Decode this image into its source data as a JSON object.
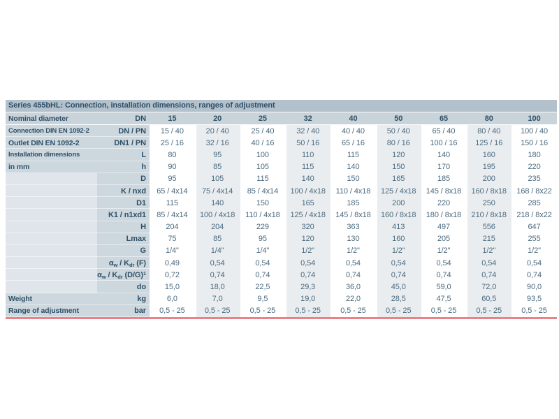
{
  "table": {
    "title": "Series 455bHL: Connection, installation dimensions, ranges of adjustment",
    "header": {
      "name": "Nominal diameter",
      "symbol": "DN",
      "columns": [
        "15",
        "20",
        "25",
        "32",
        "40",
        "50",
        "65",
        "80",
        "100"
      ]
    },
    "rows": [
      {
        "name": "Connection DIN EN 1092-2",
        "symbol": "DN / PN",
        "values": [
          "15 / 40",
          "20 / 40",
          "25 / 40",
          "32 / 40",
          "40 / 40",
          "50 / 40",
          "65 / 40",
          "80 / 40",
          "100 / 40"
        ]
      },
      {
        "name": "Outlet DIN EN 1092-2",
        "symbol": "DN1 / PN",
        "values": [
          "25 / 16",
          "32 / 16",
          "40 / 16",
          "50 / 16",
          "65 / 16",
          "80 / 16",
          "100 / 16",
          "125 / 16",
          "150 / 16"
        ]
      },
      {
        "name": "Installation dimensions",
        "symbol": "L",
        "values": [
          "80",
          "95",
          "100",
          "110",
          "115",
          "120",
          "140",
          "160",
          "180"
        ]
      },
      {
        "name": "in mm",
        "symbol": "h",
        "values": [
          "90",
          "85",
          "105",
          "115",
          "140",
          "150",
          "170",
          "195",
          "220"
        ]
      },
      {
        "name": "",
        "symbol": "D",
        "values": [
          "95",
          "105",
          "115",
          "140",
          "150",
          "165",
          "185",
          "200",
          "235"
        ]
      },
      {
        "name": "",
        "symbol": "K / nxd",
        "values": [
          "65 / 4x14",
          "75 / 4x14",
          "85 / 4x14",
          "100 / 4x18",
          "110 / 4x18",
          "125 / 4x18",
          "145 / 8x18",
          "160 / 8x18",
          "168 / 8x22"
        ]
      },
      {
        "name": "",
        "symbol": "D1",
        "values": [
          "115",
          "140",
          "150",
          "165",
          "185",
          "200",
          "220",
          "250",
          "285"
        ]
      },
      {
        "name": "",
        "symbol": "K1 / n1xd1",
        "values": [
          "85 / 4x14",
          "100 / 4x18",
          "110 / 4x18",
          "125 / 4x18",
          "145 / 8x18",
          "160 / 8x18",
          "180 / 8x18",
          "210 / 8x18",
          "218 / 8x22"
        ]
      },
      {
        "name": "",
        "symbol": "H",
        "values": [
          "204",
          "204",
          "229",
          "320",
          "363",
          "413",
          "497",
          "556",
          "647"
        ]
      },
      {
        "name": "",
        "symbol": "Lmax",
        "values": [
          "75",
          "85",
          "95",
          "120",
          "130",
          "160",
          "205",
          "215",
          "255"
        ]
      },
      {
        "name": "",
        "symbol": "G",
        "values": [
          "1/4\"",
          "1/4\"",
          "1/4\"",
          "1/2\"",
          "1/2\"",
          "1/2\"",
          "1/2\"",
          "1/2\"",
          "1/2\""
        ]
      },
      {
        "name": "",
        "symbol": "α~w~ / K~dr~ (F)",
        "values": [
          "0,49",
          "0,54",
          "0,54",
          "0,54",
          "0,54",
          "0,54",
          "0,54",
          "0,54",
          "0,54"
        ]
      },
      {
        "name": "",
        "symbol": "α~w~ / K~dr~ (D/G)^1^",
        "values": [
          "0,72",
          "0,74",
          "0,74",
          "0,74",
          "0,74",
          "0,74",
          "0,74",
          "0,74",
          "0,74"
        ]
      },
      {
        "name": "",
        "symbol": "do",
        "values": [
          "15,0",
          "18,0",
          "22,5",
          "29,3",
          "36,0",
          "45,0",
          "59,0",
          "72,0",
          "90,0"
        ]
      },
      {
        "name": "Weight",
        "symbol": "kg",
        "values": [
          "6,0",
          "7,0",
          "9,5",
          "19,0",
          "22,0",
          "28,5",
          "47,5",
          "60,5",
          "93,5"
        ]
      },
      {
        "name": "Range of adjustment",
        "symbol": "bar",
        "values": [
          "0,5 - 25",
          "0,5 - 25",
          "0,5 - 25",
          "0,5 - 25",
          "0,5 - 25",
          "0,5 - 25",
          "0,5 - 25",
          "0,5 - 25",
          "0,5 - 25"
        ]
      }
    ]
  },
  "colors": {
    "accent_rule": "#e75f65",
    "title_band": "#b2c1cb",
    "header_band": "#c9d3da",
    "label_band": "#cdd7de",
    "label_band_light": "#dfe5ea",
    "column_stripe": "#e9edf0",
    "text_dark": "#2f5068",
    "text_value": "#4b6a7e"
  }
}
